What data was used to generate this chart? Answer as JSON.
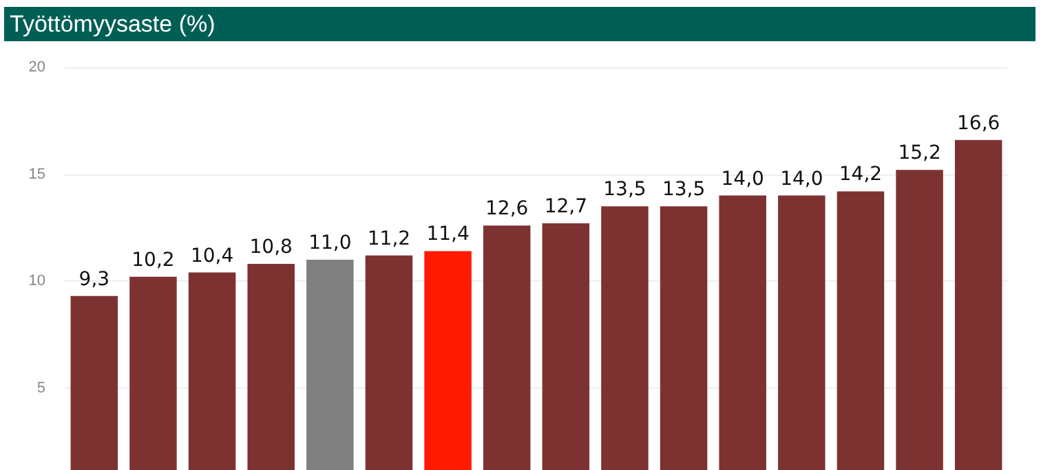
{
  "chart_data": {
    "type": "bar",
    "title": "Työttömyysaste (%)",
    "categories": [
      null,
      null,
      null,
      null,
      null,
      null,
      null,
      null,
      null,
      null,
      null,
      null,
      null,
      null,
      null,
      null
    ],
    "values": [
      9.3,
      10.2,
      10.4,
      10.8,
      11.0,
      11.2,
      11.4,
      12.6,
      12.7,
      13.5,
      13.5,
      14.0,
      14.0,
      14.2,
      15.2,
      16.6
    ],
    "value_labels": [
      "9,3",
      "10,2",
      "10,4",
      "10,8",
      "11,0",
      "11,2",
      "11,4",
      "12,6",
      "12,7",
      "13,5",
      "13,5",
      "14,0",
      "14,0",
      "14,2",
      "15,2",
      "16,6"
    ],
    "colors": [
      "#7d3232",
      "#7d3232",
      "#7d3232",
      "#7d3232",
      "#808080",
      "#7d3232",
      "#ff1a00",
      "#7d3232",
      "#7d3232",
      "#7d3232",
      "#7d3232",
      "#7d3232",
      "#7d3232",
      "#7d3232",
      "#7d3232",
      "#7d3232"
    ],
    "ylim": [
      0,
      20
    ],
    "yticks": [
      5,
      10,
      15,
      20
    ],
    "grid": "y"
  }
}
